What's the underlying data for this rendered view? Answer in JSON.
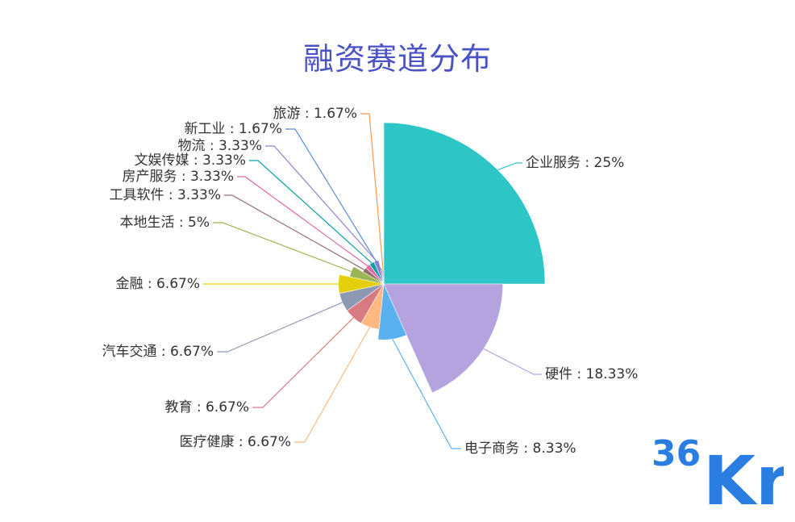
{
  "title": "融资赛道分布",
  "logo_text": {
    "small": "36",
    "large": "Kr"
  },
  "colors": {
    "title": "#4a52c6",
    "logo": "#2a7de1"
  },
  "chart_data": {
    "type": "pie",
    "subtype": "nightingale-rose",
    "title": "融资赛道分布",
    "slices": [
      {
        "name": "企业服务",
        "label": "企业服务 : 25%",
        "value": 25,
        "color": "#2ec5c6"
      },
      {
        "name": "硬件",
        "label": "硬件 : 18.33%",
        "value": 18.33,
        "color": "#b4a3df"
      },
      {
        "name": "电子商务",
        "label": "电子商务 : 8.33%",
        "value": 8.33,
        "color": "#5ab1ef"
      },
      {
        "name": "医疗健康",
        "label": "医疗健康 : 6.67%",
        "value": 6.67,
        "color": "#ffb980"
      },
      {
        "name": "教育",
        "label": "教育 : 6.67%",
        "value": 6.67,
        "color": "#d87a80"
      },
      {
        "name": "汽车交通",
        "label": "汽车交通 : 6.67%",
        "value": 6.67,
        "color": "#8d98b3"
      },
      {
        "name": "金融",
        "label": "金融 : 6.67%",
        "value": 6.67,
        "color": "#e5cf0d"
      },
      {
        "name": "本地生活",
        "label": "本地生活 : 5%",
        "value": 5,
        "color": "#97b552"
      },
      {
        "name": "工具软件",
        "label": "工具软件 : 3.33%",
        "value": 3.33,
        "color": "#95706d"
      },
      {
        "name": "房产服务",
        "label": "房产服务 : 3.33%",
        "value": 3.33,
        "color": "#dc69aa"
      },
      {
        "name": "文娱传媒",
        "label": "文娱传媒 : 3.33%",
        "value": 3.33,
        "color": "#07a2a4"
      },
      {
        "name": "物流",
        "label": "物流 : 3.33%",
        "value": 3.33,
        "color": "#9a7fd1"
      },
      {
        "name": "新工业",
        "label": "新工业 : 1.67%",
        "value": 1.67,
        "color": "#588dd5"
      },
      {
        "name": "旅游",
        "label": "旅游 : 1.67%",
        "value": 1.67,
        "color": "#f5994e"
      }
    ]
  }
}
